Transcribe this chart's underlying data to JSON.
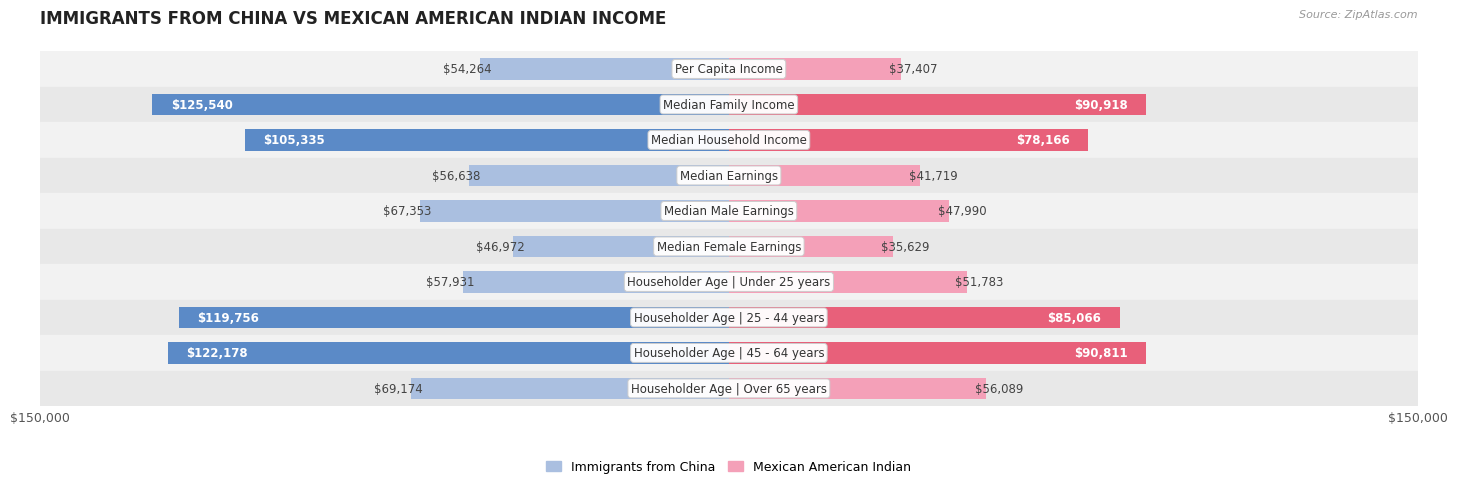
{
  "title": "IMMIGRANTS FROM CHINA VS MEXICAN AMERICAN INDIAN INCOME",
  "source": "Source: ZipAtlas.com",
  "categories": [
    "Per Capita Income",
    "Median Family Income",
    "Median Household Income",
    "Median Earnings",
    "Median Male Earnings",
    "Median Female Earnings",
    "Householder Age | Under 25 years",
    "Householder Age | 25 - 44 years",
    "Householder Age | 45 - 64 years",
    "Householder Age | Over 65 years"
  ],
  "china_values": [
    54264,
    125540,
    105335,
    56638,
    67353,
    46972,
    57931,
    119756,
    122178,
    69174
  ],
  "mexican_values": [
    37407,
    90918,
    78166,
    41719,
    47990,
    35629,
    51783,
    85066,
    90811,
    56089
  ],
  "china_color_light": "#aabfe0",
  "china_color_solid": "#5b8ac7",
  "mexican_color_light": "#f4a0b8",
  "mexican_color_solid": "#e8607a",
  "china_label": "Immigrants from China",
  "mexican_label": "Mexican American Indian",
  "max_value": 150000,
  "background_color": "#ffffff",
  "row_colors": [
    "#f2f2f2",
    "#e8e8e8"
  ],
  "label_fontsize": 8.5,
  "title_fontsize": 12,
  "bar_height": 0.6,
  "china_solid_threshold": 100000,
  "mexican_solid_threshold": 75000
}
